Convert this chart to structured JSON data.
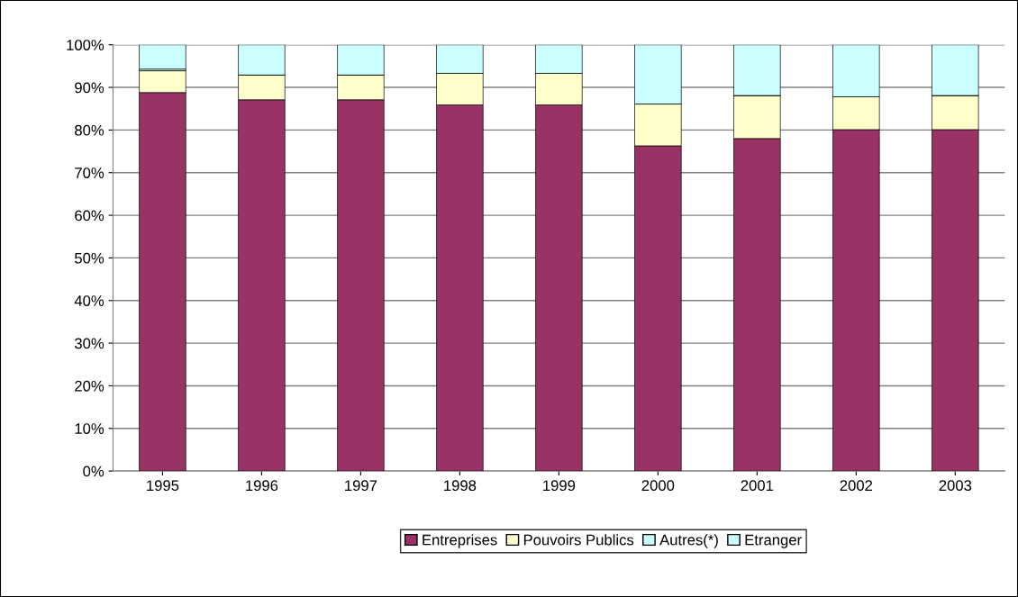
{
  "chart_data": {
    "type": "bar",
    "stacked": true,
    "categories": [
      "1995",
      "1996",
      "1997",
      "1998",
      "1999",
      "2000",
      "2001",
      "2002",
      "2003"
    ],
    "series": [
      {
        "name": "Entreprises",
        "color": "#993366",
        "values": [
          88.8,
          87.1,
          87.1,
          85.9,
          85.9,
          76.3,
          78.0,
          80.1,
          80.1
        ]
      },
      {
        "name": "Pouvoirs Publics",
        "color": "#ffffcc",
        "values": [
          5.1,
          5.8,
          5.8,
          7.4,
          7.4,
          9.8,
          10.1,
          7.7,
          8.0
        ]
      },
      {
        "name": "Autres(*)",
        "color": "#ccffff",
        "values": [
          0.4,
          0,
          0,
          0,
          0,
          0,
          0,
          0,
          0
        ]
      },
      {
        "name": "Etranger",
        "color": "#ccffff",
        "values": [
          5.7,
          7.1,
          7.1,
          6.7,
          6.7,
          13.9,
          11.9,
          12.2,
          11.9
        ]
      }
    ],
    "ylim": [
      0,
      100
    ],
    "yticks": [
      {
        "value": 0,
        "label": "0%"
      },
      {
        "value": 10,
        "label": "10%"
      },
      {
        "value": 20,
        "label": "20%"
      },
      {
        "value": 30,
        "label": "30%"
      },
      {
        "value": 40,
        "label": "40%"
      },
      {
        "value": 50,
        "label": "50%"
      },
      {
        "value": 60,
        "label": "60%"
      },
      {
        "value": 70,
        "label": "70%"
      },
      {
        "value": 80,
        "label": "80%"
      },
      {
        "value": 90,
        "label": "90%"
      },
      {
        "value": 100,
        "label": "100%"
      }
    ],
    "grid": "y",
    "legend": "bottom"
  }
}
